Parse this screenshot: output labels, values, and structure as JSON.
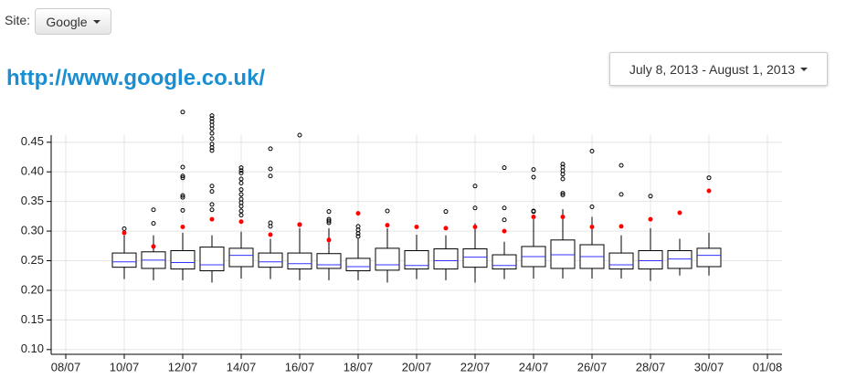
{
  "site_label": "Site:",
  "site_button": "Google",
  "page_title": "http://www.google.co.uk/",
  "date_range": "July 8, 2013 - August 1, 2013",
  "chart_data": {
    "type": "box",
    "x": [
      "10/07",
      "11/07",
      "12/07",
      "13/07",
      "14/07",
      "15/07",
      "16/07",
      "17/07",
      "18/07",
      "19/07",
      "20/07",
      "21/07",
      "22/07",
      "23/07",
      "24/07",
      "25/07",
      "26/07",
      "27/07",
      "28/07",
      "29/07",
      "30/07"
    ],
    "whisker_low": [
      0.219,
      0.217,
      0.217,
      0.213,
      0.22,
      0.219,
      0.217,
      0.217,
      0.217,
      0.213,
      0.219,
      0.217,
      0.213,
      0.219,
      0.22,
      0.22,
      0.22,
      0.22,
      0.216,
      0.225,
      0.225
    ],
    "q1": [
      0.239,
      0.237,
      0.236,
      0.233,
      0.24,
      0.239,
      0.236,
      0.237,
      0.233,
      0.234,
      0.236,
      0.236,
      0.239,
      0.236,
      0.24,
      0.237,
      0.237,
      0.236,
      0.236,
      0.237,
      0.24
    ],
    "median": [
      0.248,
      0.251,
      0.247,
      0.243,
      0.259,
      0.248,
      0.245,
      0.243,
      0.24,
      0.243,
      0.242,
      0.25,
      0.256,
      0.242,
      0.257,
      0.26,
      0.257,
      0.243,
      0.25,
      0.253,
      0.259
    ],
    "q3": [
      0.263,
      0.265,
      0.267,
      0.273,
      0.271,
      0.263,
      0.263,
      0.262,
      0.254,
      0.271,
      0.267,
      0.27,
      0.27,
      0.26,
      0.274,
      0.285,
      0.277,
      0.263,
      0.267,
      0.267,
      0.271
    ],
    "whisker_high": [
      0.293,
      0.293,
      0.297,
      0.293,
      0.299,
      0.287,
      0.305,
      0.305,
      0.287,
      0.305,
      0.294,
      0.293,
      0.313,
      0.282,
      0.32,
      0.337,
      0.324,
      0.293,
      0.305,
      0.287,
      0.297
    ],
    "mean": [
      0.297,
      0.274,
      0.307,
      0.32,
      0.316,
      0.294,
      0.311,
      0.285,
      0.33,
      0.31,
      0.307,
      0.305,
      0.307,
      0.3,
      0.324,
      0.324,
      0.307,
      0.308,
      0.32,
      0.331,
      0.368
    ],
    "outliers": [
      [
        0.304
      ],
      [
        0.313,
        0.336
      ],
      [
        0.501,
        0.408,
        0.393,
        0.39,
        0.36,
        0.357,
        0.335
      ],
      [
        0.495,
        0.49,
        0.485,
        0.479,
        0.473,
        0.465,
        0.456,
        0.447,
        0.441,
        0.436,
        0.376,
        0.367,
        0.345,
        0.336
      ],
      [
        0.407,
        0.402,
        0.398,
        0.388,
        0.381,
        0.37,
        0.362,
        0.354,
        0.348,
        0.342,
        0.334,
        0.327
      ],
      [
        0.439,
        0.405,
        0.393,
        0.314,
        0.308
      ],
      [
        0.462,
        0.311
      ],
      [
        0.333,
        0.32,
        0.317,
        0.314
      ],
      [
        0.308,
        0.302,
        0.296,
        0.291
      ],
      [
        0.334
      ],
      [],
      [
        0.333
      ],
      [
        0.376,
        0.339
      ],
      [
        0.407,
        0.339,
        0.319
      ],
      [
        0.404,
        0.391,
        0.334,
        0.333
      ],
      [
        0.413,
        0.408,
        0.402,
        0.396,
        0.388,
        0.364,
        0.361
      ],
      [
        0.435,
        0.341
      ],
      [
        0.411,
        0.362
      ],
      [
        0.359
      ],
      [],
      [
        0.39
      ]
    ],
    "median_color": "#3333ff",
    "mean_color": "#ff0000",
    "box_color": "#000000",
    "xlim": [
      "08/07",
      "01/08"
    ],
    "xticks": [
      "08/07",
      "10/07",
      "12/07",
      "14/07",
      "16/07",
      "18/07",
      "20/07",
      "22/07",
      "24/07",
      "26/07",
      "28/07",
      "30/07",
      "01/08"
    ],
    "ylim": [
      0.092,
      0.462
    ],
    "yticks": [
      {
        "value": 0.1,
        "label": "0.10"
      },
      0.15,
      {
        "value": 0.2,
        "label": "0.20"
      },
      0.25,
      {
        "value": 0.3,
        "label": "0.30"
      },
      0.35,
      {
        "value": 0.4,
        "label": "0.40"
      },
      0.45
    ],
    "grid": true
  }
}
